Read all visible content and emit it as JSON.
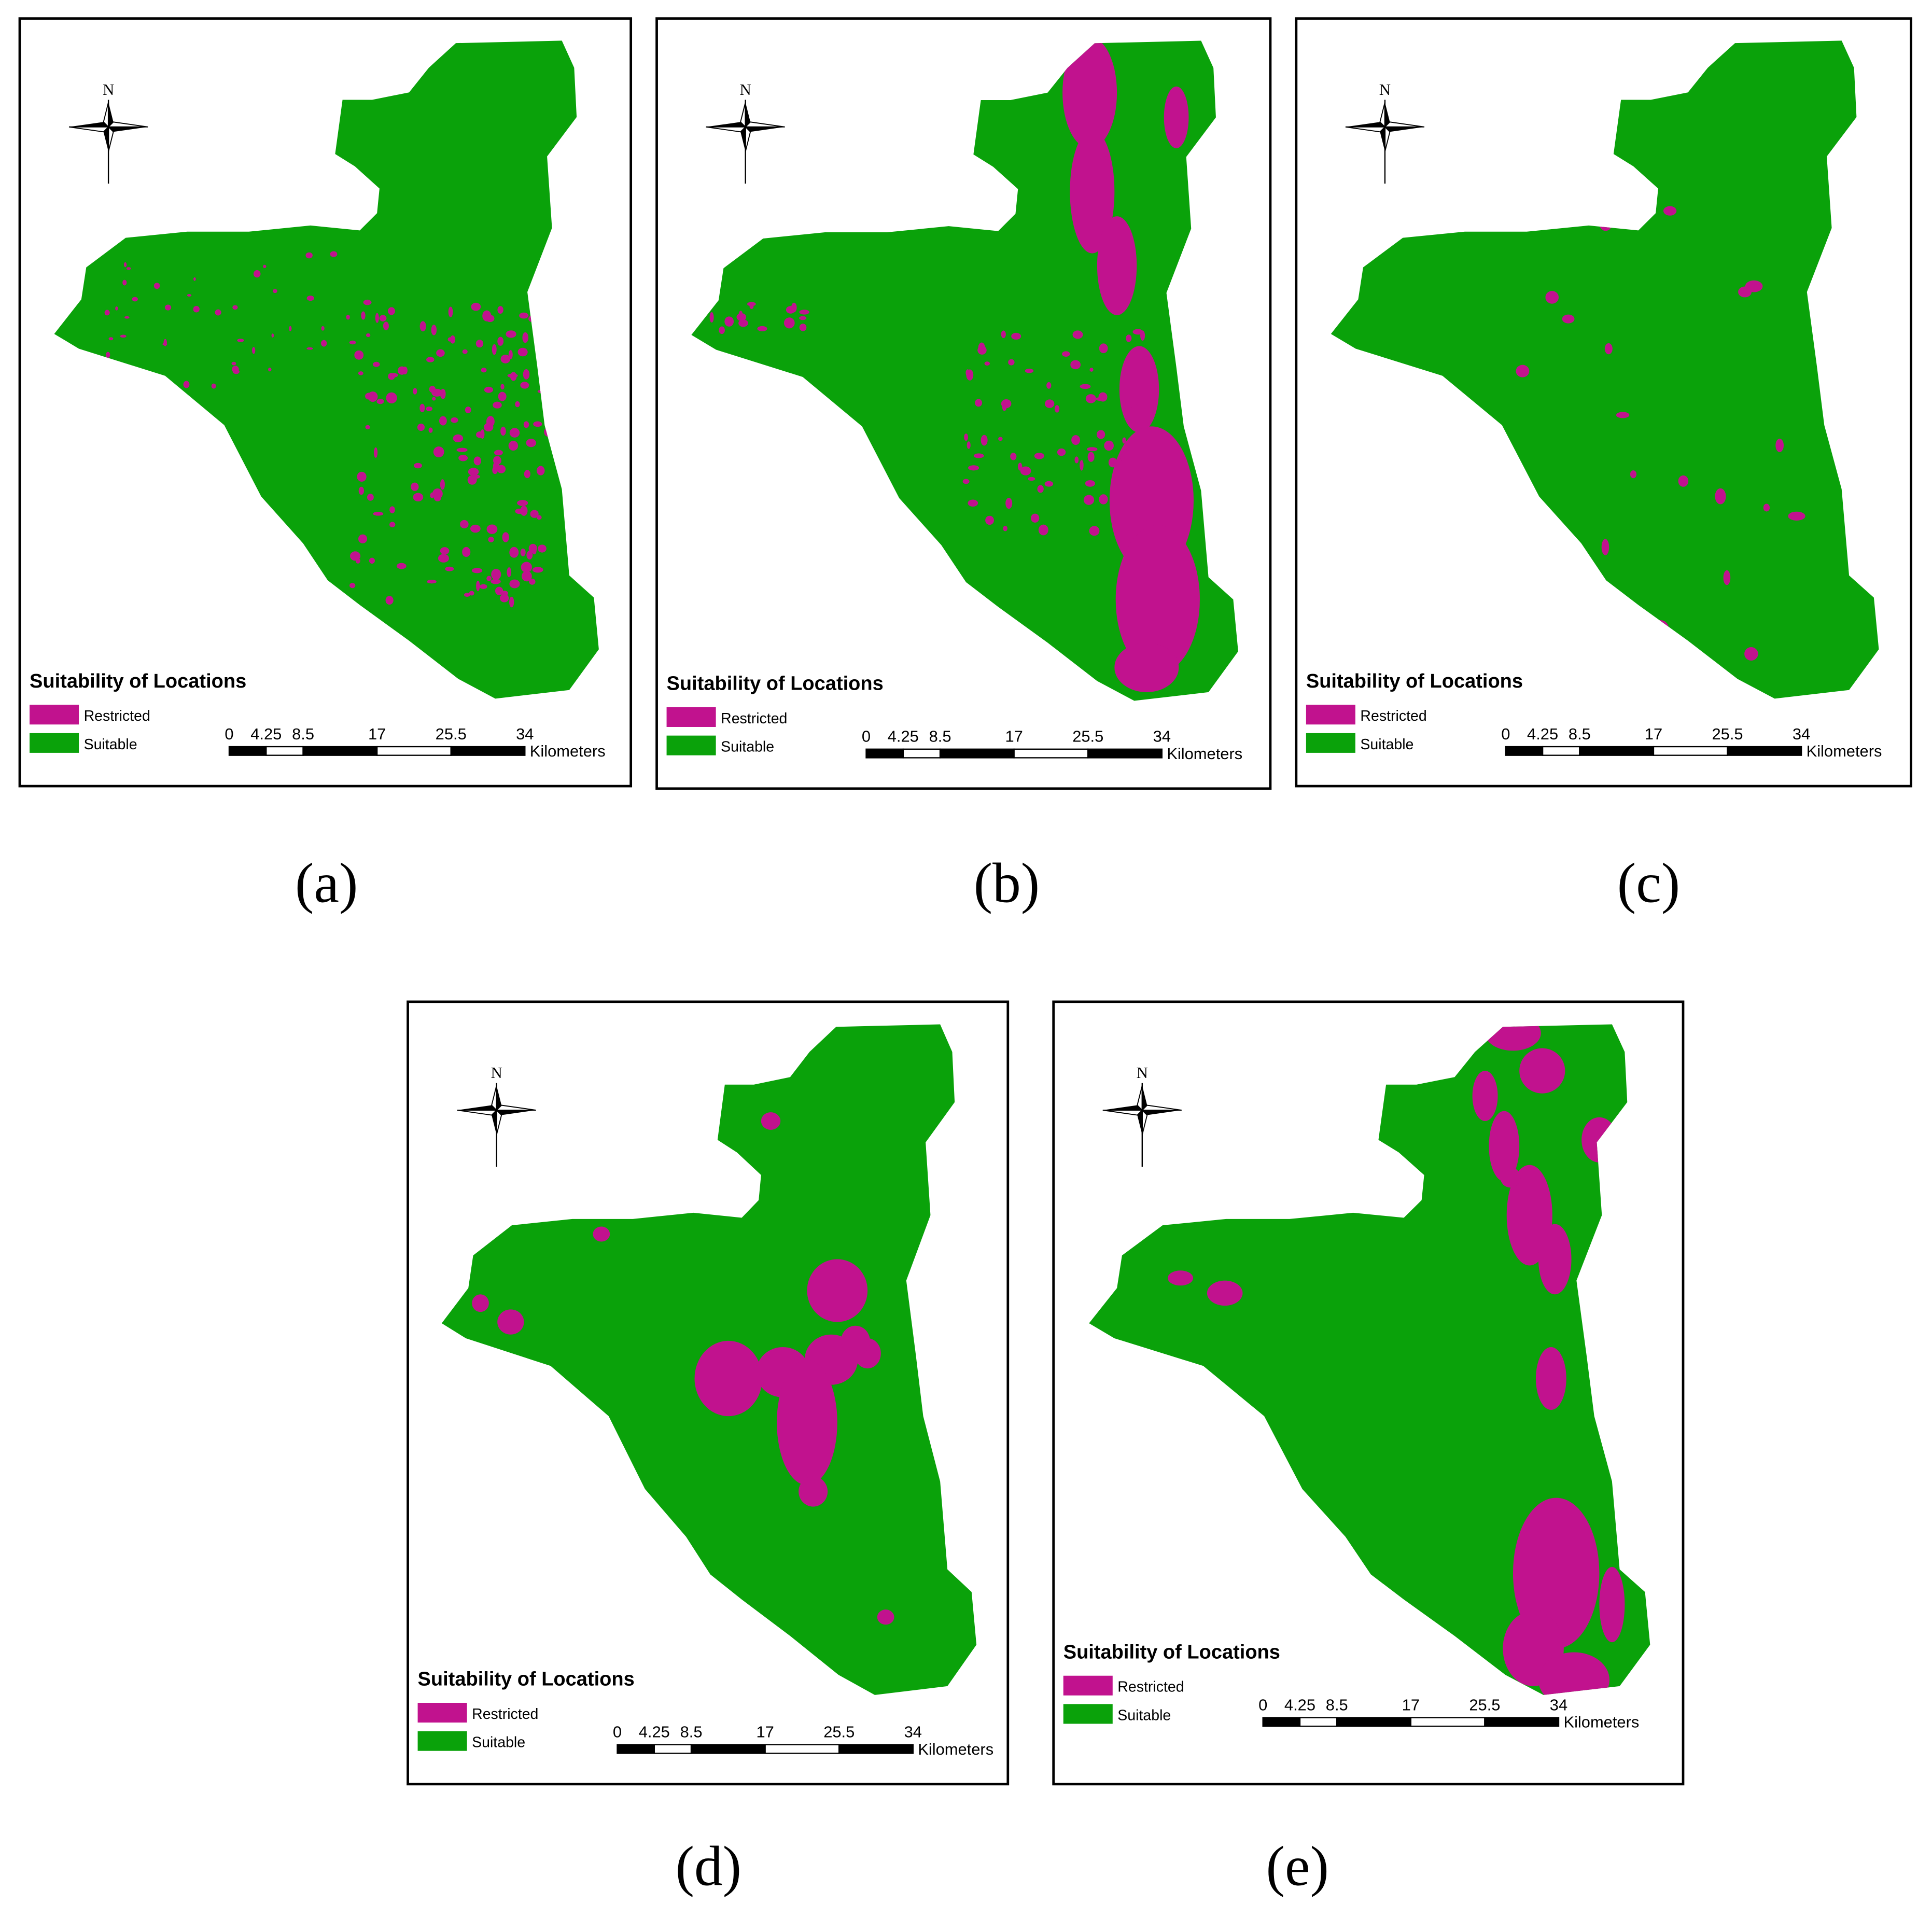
{
  "maps": [
    {
      "label": "(a)"
    },
    {
      "label": "(b)"
    },
    {
      "label": "(c)"
    },
    {
      "label": "(d)"
    },
    {
      "label": "(e)"
    }
  ],
  "north": "N",
  "legend": {
    "title": "Suitability of Locations",
    "items": [
      {
        "name": "Restricted",
        "color": "#c1128e"
      },
      {
        "name": "Suitable",
        "color": "#0aa20a"
      }
    ]
  },
  "scale": {
    "ticks": [
      0,
      4.25,
      8.5,
      17,
      25.5,
      34
    ],
    "unit": "Kilometers"
  }
}
